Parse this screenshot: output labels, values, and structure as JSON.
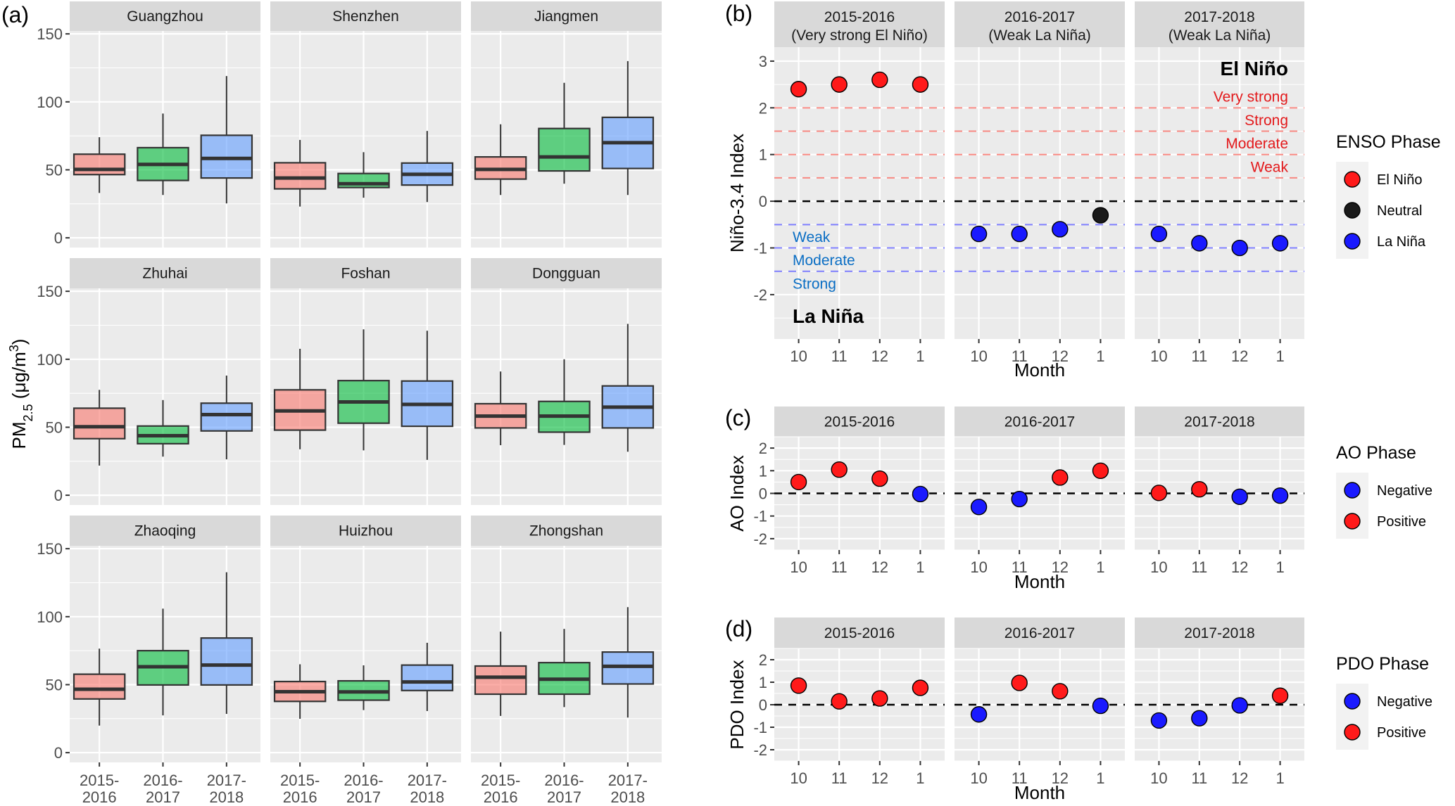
{
  "chart_data": [
    {
      "id": "a",
      "panel_label": "(a)",
      "type": "box",
      "ylabel": "PM2.5 (μg/m3)",
      "ylabel_main": "PM",
      "ylabel_sub": "2.5",
      "ylabel_rest": " (μg/m",
      "ylabel_sup": "3",
      "ylabel_end": ")",
      "ylim": [
        0,
        150
      ],
      "yticks": [
        0,
        50,
        100,
        150
      ],
      "grid": true,
      "categories": [
        "2015-2016",
        "2016-2017",
        "2017-2018"
      ],
      "category_lines": [
        [
          "2015-",
          "2016"
        ],
        [
          "2016-",
          "2017"
        ],
        [
          "2017-",
          "2018"
        ]
      ],
      "category_colors": [
        "#f8766d",
        "#00ba38",
        "#619cff"
      ],
      "facets": [
        {
          "name": "Guangzhou",
          "boxes": [
            {
              "min": 33,
              "q1": 46.5,
              "median": 50.3,
              "q3": 61.5,
              "max": 74
            },
            {
              "min": 31.5,
              "q1": 42.2,
              "median": 54,
              "q3": 66.3,
              "max": 91.4
            },
            {
              "min": 25.3,
              "q1": 44,
              "median": 58.4,
              "q3": 75.4,
              "max": 119
            }
          ]
        },
        {
          "name": "Shenzhen",
          "boxes": [
            {
              "min": 23,
              "q1": 36,
              "median": 44,
              "q3": 55.2,
              "max": 72
            },
            {
              "min": 29.5,
              "q1": 37,
              "median": 39.8,
              "q3": 47.3,
              "max": 63
            },
            {
              "min": 26.3,
              "q1": 38.8,
              "median": 46.7,
              "q3": 55,
              "max": 78.6
            }
          ]
        },
        {
          "name": "Jiangmen",
          "boxes": [
            {
              "min": 31.5,
              "q1": 43.2,
              "median": 50.3,
              "q3": 59.5,
              "max": 83.5
            },
            {
              "min": 39.8,
              "q1": 49.2,
              "median": 59.5,
              "q3": 80.4,
              "max": 114
            },
            {
              "min": 31.5,
              "q1": 51,
              "median": 70,
              "q3": 88.6,
              "max": 130
            }
          ]
        },
        {
          "name": "Zhuhai",
          "boxes": [
            {
              "min": 21.8,
              "q1": 41.6,
              "median": 50.4,
              "q3": 64,
              "max": 77.5
            },
            {
              "min": 28.4,
              "q1": 37.9,
              "median": 43.8,
              "q3": 50.9,
              "max": 70
            },
            {
              "min": 26.4,
              "q1": 47.3,
              "median": 59.3,
              "q3": 67.7,
              "max": 88
            }
          ]
        },
        {
          "name": "Foshan",
          "boxes": [
            {
              "min": 33.8,
              "q1": 47.9,
              "median": 62,
              "q3": 77.5,
              "max": 107.7
            },
            {
              "min": 33,
              "q1": 53,
              "median": 68.6,
              "q3": 84.3,
              "max": 122
            },
            {
              "min": 26,
              "q1": 50.7,
              "median": 66.8,
              "q3": 84,
              "max": 121
            }
          ]
        },
        {
          "name": "Dongguan",
          "boxes": [
            {
              "min": 36.8,
              "q1": 49.5,
              "median": 58.2,
              "q3": 67.3,
              "max": 91
            },
            {
              "min": 37,
              "q1": 46.4,
              "median": 58.2,
              "q3": 69,
              "max": 100
            },
            {
              "min": 32,
              "q1": 49.5,
              "median": 64.8,
              "q3": 80.4,
              "max": 126
            }
          ]
        },
        {
          "name": "Zhaoqing",
          "boxes": [
            {
              "min": 19.9,
              "q1": 39.5,
              "median": 46.6,
              "q3": 57.7,
              "max": 76.5
            },
            {
              "min": 27.4,
              "q1": 49.8,
              "median": 63.2,
              "q3": 75,
              "max": 105.9
            },
            {
              "min": 28.5,
              "q1": 49.8,
              "median": 64.4,
              "q3": 84.3,
              "max": 132.7
            }
          ]
        },
        {
          "name": "Huizhou",
          "boxes": [
            {
              "min": 24.9,
              "q1": 37.7,
              "median": 44.8,
              "q3": 52.3,
              "max": 65
            },
            {
              "min": 31.3,
              "q1": 38.6,
              "median": 44.7,
              "q3": 52.8,
              "max": 64.2
            },
            {
              "min": 30.6,
              "q1": 45.7,
              "median": 52,
              "q3": 64.4,
              "max": 80.8
            }
          ]
        },
        {
          "name": "Zhongshan",
          "boxes": [
            {
              "min": 27,
              "q1": 43,
              "median": 55.5,
              "q3": 63.7,
              "max": 89
            },
            {
              "min": 33.5,
              "q1": 43,
              "median": 54,
              "q3": 66.2,
              "max": 91
            },
            {
              "min": 25.8,
              "q1": 50.5,
              "median": 63.5,
              "q3": 74,
              "max": 107
            }
          ]
        }
      ]
    },
    {
      "id": "b",
      "panel_label": "(b)",
      "type": "scatter",
      "xlabel": "Month",
      "ylabel": "Niño-3.4 Index",
      "ylim": [
        -2.95,
        3.3
      ],
      "yticks": [
        -2,
        -1,
        0,
        1,
        2,
        3
      ],
      "x_categories": [
        "10",
        "11",
        "12",
        "1"
      ],
      "facets": [
        {
          "title": [
            "2015-2016",
            "(Very strong El Niño)"
          ],
          "values": [
            2.4,
            2.5,
            2.6,
            2.5
          ],
          "phases": [
            "El Niño",
            "El Niño",
            "El Niño",
            "El Niño"
          ]
        },
        {
          "title": [
            "2016-2017",
            "(Weak La Niña)"
          ],
          "values": [
            -0.7,
            -0.7,
            -0.6,
            -0.3
          ],
          "phases": [
            "La Niña",
            "La Niña",
            "La Niña",
            "Neutral"
          ]
        },
        {
          "title": [
            "2017-2018",
            "(Weak La Niña)"
          ],
          "values": [
            -0.7,
            -0.9,
            -1.0,
            -0.9
          ],
          "phases": [
            "La Niña",
            "La Niña",
            "La Niña",
            "La Niña"
          ]
        }
      ],
      "reference_lines": [
        {
          "y": 2.0,
          "color": "#f8766d"
        },
        {
          "y": 1.5,
          "color": "#f8766d"
        },
        {
          "y": 1.0,
          "color": "#f8766d"
        },
        {
          "y": 0.5,
          "color": "#f8766d"
        },
        {
          "y": 0.0,
          "color": "#000000"
        },
        {
          "y": -0.5,
          "color": "#6b6bff"
        },
        {
          "y": -1.0,
          "color": "#6b6bff"
        },
        {
          "y": -1.5,
          "color": "#6b6bff"
        }
      ],
      "annotations": {
        "el_nino_title": "El Niño",
        "el_nino_levels": [
          "Very strong",
          "Strong",
          "Moderate",
          "Weak"
        ],
        "la_nina_title": "La Niña",
        "la_nina_levels": [
          "Weak",
          "Moderate",
          "Strong"
        ]
      },
      "legend": {
        "title": "ENSO Phase",
        "position": "right",
        "items": [
          {
            "label": "El Niño",
            "color": "#ff1a1a"
          },
          {
            "label": "Neutral",
            "color": "#1a1a1a"
          },
          {
            "label": "La Niña",
            "color": "#1a1aff"
          }
        ]
      }
    },
    {
      "id": "c",
      "panel_label": "(c)",
      "type": "scatter",
      "xlabel": "Month",
      "ylabel": "AO Index",
      "ylim": [
        -2.5,
        2.5
      ],
      "yticks": [
        -2,
        -1,
        0,
        1,
        2
      ],
      "x_categories": [
        "10",
        "11",
        "12",
        "1"
      ],
      "facets": [
        {
          "title": [
            "2015-2016"
          ],
          "values": [
            0.5,
            1.05,
            0.65,
            -0.03
          ],
          "phases": [
            "Positive",
            "Positive",
            "Positive",
            "Negative"
          ]
        },
        {
          "title": [
            "2016-2017"
          ],
          "values": [
            -0.6,
            -0.25,
            0.7,
            1.0
          ],
          "phases": [
            "Negative",
            "Negative",
            "Positive",
            "Positive"
          ]
        },
        {
          "title": [
            "2017-2018"
          ],
          "values": [
            0.02,
            0.18,
            -0.15,
            -0.1
          ],
          "phases": [
            "Positive",
            "Positive",
            "Negative",
            "Negative"
          ]
        }
      ],
      "reference_lines": [
        {
          "y": 0.0,
          "color": "#000000"
        }
      ],
      "legend": {
        "title": "AO Phase",
        "position": "right",
        "items": [
          {
            "label": "Negative",
            "color": "#1a1aff"
          },
          {
            "label": "Positive",
            "color": "#ff1a1a"
          }
        ]
      }
    },
    {
      "id": "d",
      "panel_label": "(d)",
      "type": "scatter",
      "xlabel": "Month",
      "ylabel": "PDO Index",
      "ylim": [
        -2.5,
        2.5
      ],
      "yticks": [
        -2,
        -1,
        0,
        1,
        2
      ],
      "x_categories": [
        "10",
        "11",
        "12",
        "1"
      ],
      "facets": [
        {
          "title": [
            "2015-2016"
          ],
          "values": [
            0.85,
            0.15,
            0.28,
            0.75
          ],
          "phases": [
            "Positive",
            "Positive",
            "Positive",
            "Positive"
          ]
        },
        {
          "title": [
            "2016-2017"
          ],
          "values": [
            -0.43,
            0.97,
            0.6,
            -0.05
          ],
          "phases": [
            "Negative",
            "Positive",
            "Positive",
            "Negative"
          ]
        },
        {
          "title": [
            "2017-2018"
          ],
          "values": [
            -0.7,
            -0.6,
            -0.03,
            0.4
          ],
          "phases": [
            "Negative",
            "Negative",
            "Negative",
            "Positive"
          ]
        }
      ],
      "reference_lines": [
        {
          "y": 0.0,
          "color": "#000000"
        }
      ],
      "legend": {
        "title": "PDO Phase",
        "position": "right",
        "items": [
          {
            "label": "Negative",
            "color": "#1a1aff"
          },
          {
            "label": "Positive",
            "color": "#ff1a1a"
          }
        ]
      }
    }
  ]
}
